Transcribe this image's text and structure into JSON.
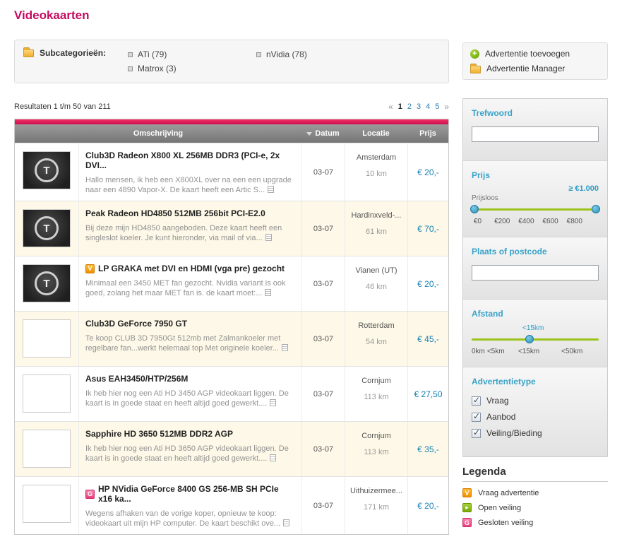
{
  "page": {
    "title": "Videokaarten"
  },
  "subcategories": {
    "label": "Subcategorieën:",
    "items": [
      {
        "label": "ATi (79)"
      },
      {
        "label": "nVidia (78)"
      },
      {
        "label": "Matrox (3)"
      }
    ]
  },
  "actions": {
    "add_label": "Advertentie toevoegen",
    "manager_label": "Advertentie Manager"
  },
  "results": {
    "summary": "Resultaten 1 t/m 50 van 211",
    "prev": "«",
    "next": "»",
    "current_page": "1",
    "pages": [
      "1",
      "2",
      "3",
      "4",
      "5"
    ]
  },
  "table": {
    "headers": {
      "description": "Omschrijving",
      "date": "Datum",
      "location": "Locatie",
      "price": "Prijs"
    },
    "rows": [
      {
        "type": "",
        "thumb": "tweakers-logo",
        "title": "Club3D Radeon X800 XL 256MB DDR3 (PCI-e, 2x DVI...",
        "description": "Hallo mensen, ik heb een X800XL over na een een upgrade naar een 4890 Vapor-X. De kaart heeft een Artic S...",
        "date": "03-07",
        "city": "Amsterdam",
        "distance": "10 km",
        "price": "€ 20,-"
      },
      {
        "type": "",
        "thumb": "tweakers-logo",
        "title": "Peak Radeon HD4850 512MB 256bit PCI-E2.0",
        "description": "Bij deze mijn HD4850 aangeboden. Deze kaart heeft een singleslot koeler. Je kunt hieronder, via mail of via...",
        "date": "03-07",
        "city": "Hardinxveld-...",
        "distance": "61 km",
        "price": "€ 70,-"
      },
      {
        "type": "V",
        "thumb": "tweakers-logo",
        "title": "LP GRAKA met DVI en HDMI (vga pre) gezocht",
        "description": "Minimaal een 3450 MET fan gezocht. Nvidia variant is ook goed, zolang het maar MET fan is. de kaart moet:...",
        "date": "03-07",
        "city": "Vianen (UT)",
        "distance": "46 km",
        "price": "€ 20,-"
      },
      {
        "type": "",
        "thumb": "blank",
        "title": "Club3D GeForce 7950 GT",
        "description": "Te koop CLUB 3D 7950Gt 512mb met Zalmankoeler met regelbare fan...werkt helemaal top Met originele koeler...",
        "date": "03-07",
        "city": "Rotterdam",
        "distance": "54 km",
        "price": "€ 45,-"
      },
      {
        "type": "",
        "thumb": "blank",
        "title": "Asus EAH3450/HTP/256M",
        "description": "Ik heb hier nog een Ati HD 3450 AGP videokaart liggen. De kaart is in goede staat en heeft altijd goed gewerkt....",
        "date": "03-07",
        "city": "Cornjum",
        "distance": "113 km",
        "price": "€ 27,50"
      },
      {
        "type": "",
        "thumb": "blank",
        "title": "Sapphire HD 3650 512MB DDR2 AGP",
        "description": "Ik heb hier nog een Ati HD 3650 AGP videokaart liggen. De kaart is in goede staat en heeft altijd goed gewerkt....",
        "date": "03-07",
        "city": "Cornjum",
        "distance": "113 km",
        "price": "€ 35,-"
      },
      {
        "type": "G",
        "thumb": "blank",
        "title": "HP NVidia GeForce 8400 GS 256-MB SH PCIe x16 ka...",
        "description": "Wegens afhaken van de vorige koper, opnieuw te koop: videokaart uit mijn HP computer. De kaart beschikt ove...",
        "date": "03-07",
        "city": "Uithuizermee...",
        "distance": "171 km",
        "price": "€ 20,-"
      }
    ]
  },
  "sidebar": {
    "keyword": {
      "label": "Trefwoord",
      "value": ""
    },
    "price": {
      "label": "Prijs",
      "max_label": "≥ €1.000",
      "min_label": "Prijsloos",
      "ticks": [
        "€0",
        "€200",
        "€400",
        "€600",
        "€800"
      ]
    },
    "place": {
      "label": "Plaats of postcode",
      "value": ""
    },
    "distance": {
      "label": "Afstand",
      "current": "<15km",
      "ticks": [
        "0km",
        "<5km",
        "<15km",
        "<50km"
      ]
    },
    "adtype": {
      "label": "Advertentietype",
      "options": [
        {
          "label": "Vraag",
          "checked": true
        },
        {
          "label": "Aanbod",
          "checked": true
        },
        {
          "label": "Veiling/Bieding",
          "checked": true
        }
      ]
    }
  },
  "legend": {
    "title": "Legenda",
    "items": [
      {
        "glyph": "V",
        "type": "vraag",
        "label": "Vraag advertentie"
      },
      {
        "glyph": "▸",
        "type": "open",
        "label": "Open veiling"
      },
      {
        "glyph": "G",
        "type": "gesloten",
        "label": "Gesloten veiling"
      }
    ]
  }
}
